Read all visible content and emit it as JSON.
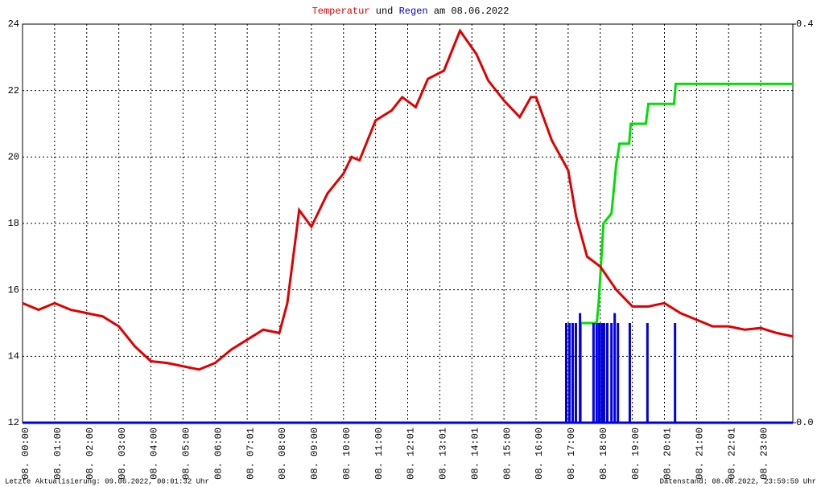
{
  "chart_data": {
    "type": "line",
    "title_joiner": "und",
    "title_date": "am 08.06.2022",
    "xlim": [
      0,
      24
    ],
    "xticks": [
      {
        "value": 0,
        "label": "08. 00:00"
      },
      {
        "value": 1,
        "label": "08. 01:00"
      },
      {
        "value": 2,
        "label": "08. 02:00"
      },
      {
        "value": 3,
        "label": "08. 03:00"
      },
      {
        "value": 4,
        "label": "08. 04:00"
      },
      {
        "value": 5,
        "label": "08. 05:00"
      },
      {
        "value": 6,
        "label": "08. 06:00"
      },
      {
        "value": 7,
        "label": "08. 07:01"
      },
      {
        "value": 8,
        "label": "08. 08:00"
      },
      {
        "value": 9,
        "label": "08. 09:00"
      },
      {
        "value": 10,
        "label": "08. 10:00"
      },
      {
        "value": 11,
        "label": "08. 11:00"
      },
      {
        "value": 12,
        "label": "08. 12:01"
      },
      {
        "value": 13,
        "label": "08. 13:01"
      },
      {
        "value": 14,
        "label": "08. 14:01"
      },
      {
        "value": 15,
        "label": "08. 15:00"
      },
      {
        "value": 16,
        "label": "08. 16:00"
      },
      {
        "value": 17,
        "label": "08. 17:00"
      },
      {
        "value": 18,
        "label": "08. 18:00"
      },
      {
        "value": 19,
        "label": "08. 19:00"
      },
      {
        "value": 20,
        "label": "08. 20:01"
      },
      {
        "value": 21,
        "label": "08. 21:00"
      },
      {
        "value": 22,
        "label": "08. 22:01"
      },
      {
        "value": 23,
        "label": "08. 23:00"
      }
    ],
    "ylim": [
      12,
      24
    ],
    "yticks": [
      12,
      14,
      16,
      18,
      20,
      22,
      24
    ],
    "y2lim": [
      0,
      0.4
    ],
    "y2ticks": [
      {
        "value": 0,
        "label": "0.0"
      },
      0.4
    ],
    "grid": true,
    "series": [
      {
        "name": "Temperatur",
        "color": "#e00000",
        "kind": "line",
        "x": [
          0,
          0.5,
          1,
          1.5,
          2,
          2.5,
          3,
          3.5,
          4,
          4.5,
          5,
          5.5,
          6,
          6.5,
          7,
          7.5,
          8,
          8.25,
          8.62,
          9,
          9.5,
          10,
          10.25,
          10.5,
          11,
          11.5,
          11.83,
          12.25,
          12.63,
          13.13,
          13.63,
          14.14,
          14.51,
          15,
          15.49,
          15.84,
          16,
          16.49,
          17,
          17.25,
          17.59,
          18,
          18.5,
          19,
          19.5,
          20,
          20.5,
          21,
          21.5,
          22,
          22.5,
          23,
          23.5,
          24
        ],
        "values": [
          15.6,
          15.4,
          15.6,
          15.4,
          15.3,
          15.2,
          14.9,
          14.3,
          13.85,
          13.8,
          13.7,
          13.6,
          13.8,
          14.2,
          14.5,
          14.8,
          14.7,
          15.6,
          18.4,
          17.9,
          18.9,
          19.5,
          20.0,
          19.9,
          21.1,
          21.4,
          21.8,
          21.5,
          22.35,
          22.6,
          23.8,
          23.1,
          22.3,
          21.7,
          21.2,
          21.8,
          21.8,
          20.5,
          19.6,
          18.2,
          17.0,
          16.7,
          16.0,
          15.5,
          15.5,
          15.6,
          15.3,
          15.1,
          14.9,
          14.9,
          14.8,
          14.85,
          14.7,
          14.6
        ]
      },
      {
        "name": "Regen",
        "color": "#0000e0",
        "kind": "bar",
        "axis": "y2",
        "x": [
          16.94,
          17.04,
          17.14,
          17.24,
          17.37,
          17.79,
          17.89,
          17.97,
          18.05,
          18.12,
          18.22,
          18.35,
          18.45,
          18.55,
          18.92,
          19.47,
          20.33
        ],
        "values": [
          0.1,
          0.1,
          0.1,
          0.1,
          0.11,
          0.1,
          0.1,
          0.1,
          0.1,
          0.1,
          0.1,
          0.1,
          0.11,
          0.1,
          0.1,
          0.1,
          0.1
        ]
      },
      {
        "color": "#00e000",
        "kind": "line",
        "axis": "y2",
        "x": [
          0,
          17.39,
          17.39,
          17.89,
          17.95,
          18.1,
          18.35,
          18.5,
          18.6,
          18.9,
          18.95,
          19.42,
          19.5,
          20.3,
          20.35,
          24
        ],
        "values": [
          0,
          0,
          0.1,
          0.1,
          0.12,
          0.2,
          0.21,
          0.26,
          0.28,
          0.28,
          0.3,
          0.3,
          0.32,
          0.32,
          0.34,
          0.34
        ]
      }
    ],
    "footer_left": "Letzte Aktualisierung: 09.06.2022, 00:01:32 Uhr",
    "footer_right": "Datenstand: 08.06.2022, 23:59:59 Uhr"
  }
}
